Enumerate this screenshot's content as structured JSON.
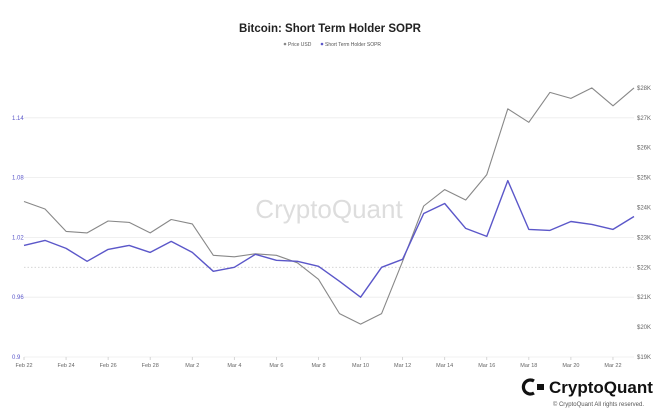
{
  "chart_data": {
    "type": "line",
    "title": "Bitcoin: Short Term Holder SOPR",
    "x": [
      "Feb 22",
      "Feb 23",
      "Feb 24",
      "Feb 25",
      "Feb 26",
      "Feb 27",
      "Feb 28",
      "Mar 1",
      "Mar 2",
      "Mar 3",
      "Mar 4",
      "Mar 5",
      "Mar 6",
      "Mar 7",
      "Mar 8",
      "Mar 9",
      "Mar 10",
      "Mar 11",
      "Mar 12",
      "Mar 13",
      "Mar 14",
      "Mar 15",
      "Mar 16",
      "Mar 17",
      "Mar 18",
      "Mar 19",
      "Mar 20",
      "Mar 21",
      "Mar 22",
      "Mar 23"
    ],
    "x_tick_labels": [
      "Feb 22",
      "Feb 24",
      "Feb 26",
      "Feb 28",
      "Mar 2",
      "Mar 4",
      "Mar 6",
      "Mar 8",
      "Mar 10",
      "Mar 12",
      "Mar 14",
      "Mar 16",
      "Mar 18",
      "Mar 20",
      "Mar 22"
    ],
    "series": [
      {
        "name": "Price USD",
        "axis": "right",
        "color": "#888888",
        "values": [
          24200,
          23950,
          23200,
          23150,
          23550,
          23500,
          23150,
          23600,
          23450,
          22400,
          22350,
          22450,
          22400,
          22150,
          21600,
          20450,
          20100,
          20450,
          22200,
          24050,
          24600,
          24250,
          25100,
          27300,
          26850,
          27850,
          27650,
          28000,
          27400,
          28000
        ]
      },
      {
        "name": "Short Term Holder SOPR",
        "axis": "left",
        "color": "#5b57c9",
        "values": [
          1.012,
          1.017,
          1.009,
          0.996,
          1.008,
          1.012,
          1.005,
          1.016,
          1.005,
          0.986,
          0.99,
          1.003,
          0.997,
          0.996,
          0.991,
          0.976,
          0.96,
          0.99,
          0.998,
          1.044,
          1.054,
          1.029,
          1.021,
          1.077,
          1.028,
          1.027,
          1.036,
          1.033,
          1.028,
          1.041
        ]
      }
    ],
    "y_left": {
      "ticks": [
        "0.9",
        "0.96",
        "1.02",
        "1.08",
        "1.14"
      ],
      "range": [
        0.9,
        1.2
      ]
    },
    "y_right": {
      "ticks": [
        "$19K",
        "$20K",
        "$21K",
        "$22K",
        "$23K",
        "$24K",
        "$25K",
        "$26K",
        "$27K",
        "$28K"
      ],
      "range": [
        19000,
        29000
      ]
    },
    "legend": {
      "position": "top-center"
    },
    "grid": true
  },
  "watermark": "CryptoQuant",
  "brand": {
    "name": "CryptoQuant",
    "copyright": "© CryptoQuant All rights reserved."
  }
}
